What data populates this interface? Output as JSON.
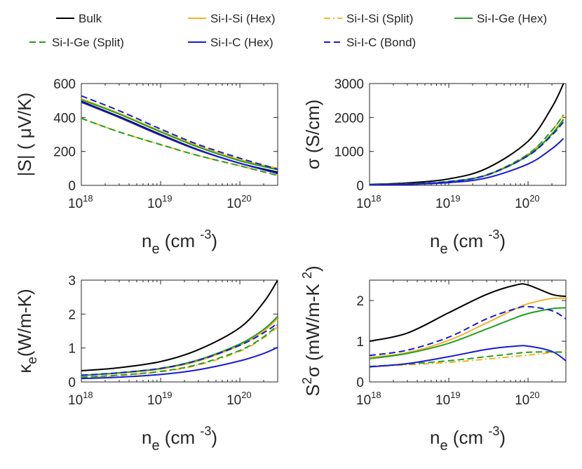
{
  "legend": {
    "entries": [
      {
        "name": "Bulk",
        "color": "#000000",
        "dash": "solid"
      },
      {
        "name": "Si-I-Si (Hex)",
        "color": "#F5B325",
        "dash": "solid"
      },
      {
        "name": "Si-I-Si (Split)",
        "color": "#F5B325",
        "dash": "dashdot"
      },
      {
        "name": "Si-I-Ge (Hex)",
        "color": "#22A022",
        "dash": "solid"
      },
      {
        "name": "Si-I-Ge (Split)",
        "color": "#22A022",
        "dash": "dashed"
      },
      {
        "name": "Si-I-C (Hex)",
        "color": "#1A1AD6",
        "dash": "solid"
      },
      {
        "name": "Si-I-C (Bond)",
        "color": "#1A1AD6",
        "dash": "dashed"
      }
    ]
  },
  "chart_data": [
    {
      "type": "line",
      "id": "seebeck",
      "xscale": "log",
      "xlim": [
        1e+18,
        3e+20
      ],
      "ylim": [
        0,
        600
      ],
      "xticks": [
        {
          "base": "10",
          "exp": "18",
          "value": 1e+18
        },
        {
          "base": "10",
          "exp": "19",
          "value": 1e+19
        },
        {
          "base": "10",
          "exp": "20",
          "value": 1e+20
        }
      ],
      "yticks": [
        {
          "label": "0",
          "value": 0
        },
        {
          "label": "200",
          "value": 200
        },
        {
          "label": "400",
          "value": 400
        },
        {
          "label": "600",
          "value": 600
        }
      ],
      "xlabel": {
        "base": "n",
        "sub": "e",
        "unit": " (cm ",
        "sup": "-3",
        "close": ")"
      },
      "ylabel": "|S| ( μV/K)",
      "x": [
        1e+18,
        3e+18,
        1e+19,
        3e+19,
        1e+20,
        3e+20
      ],
      "series": [
        {
          "name": "Bulk",
          "values": [
            495,
            405,
            300,
            210,
            130,
            78
          ]
        },
        {
          "name": "Si-I-Si (Hex)",
          "values": [
            510,
            425,
            320,
            232,
            152,
            100
          ]
        },
        {
          "name": "Si-I-Si (Split)",
          "values": [
            395,
            315,
            240,
            175,
            115,
            60
          ]
        },
        {
          "name": "Si-I-Ge (Hex)",
          "values": [
            505,
            420,
            315,
            225,
            145,
            92
          ]
        },
        {
          "name": "Si-I-Ge (Split)",
          "values": [
            395,
            315,
            240,
            175,
            115,
            58
          ]
        },
        {
          "name": "Si-I-C (Hex)",
          "values": [
            490,
            400,
            295,
            207,
            130,
            70
          ]
        },
        {
          "name": "Si-I-C (Bond)",
          "values": [
            527,
            440,
            332,
            240,
            160,
            95
          ]
        }
      ]
    },
    {
      "type": "line",
      "id": "conductivity",
      "xscale": "log",
      "xlim": [
        1e+18,
        3e+20
      ],
      "ylim": [
        0,
        3000
      ],
      "xticks": [
        {
          "base": "10",
          "exp": "18",
          "value": 1e+18
        },
        {
          "base": "10",
          "exp": "19",
          "value": 1e+19
        },
        {
          "base": "10",
          "exp": "20",
          "value": 1e+20
        }
      ],
      "yticks": [
        {
          "label": "0",
          "value": 0
        },
        {
          "label": "1000",
          "value": 1000
        },
        {
          "label": "2000",
          "value": 2000
        },
        {
          "label": "3000",
          "value": 3000
        }
      ],
      "xlabel": {
        "base": "n",
        "sub": "e",
        "unit": " (cm ",
        "sup": "-3",
        "close": ")"
      },
      "ylabel": "σ (S/cm)",
      "x": [
        1e+18,
        3e+18,
        1e+19,
        3e+19,
        1e+20,
        2e+20,
        2.8e+20
      ],
      "series": [
        {
          "name": "Bulk",
          "values": [
            25,
            70,
            190,
            500,
            1300,
            2300,
            3000
          ]
        },
        {
          "name": "Si-I-Si (Hex)",
          "values": [
            15,
            40,
            110,
            300,
            880,
            1500,
            1920
          ]
        },
        {
          "name": "Si-I-Si (Split)",
          "values": [
            15,
            40,
            110,
            310,
            920,
            1620,
            2060
          ]
        },
        {
          "name": "Si-I-Ge (Hex)",
          "values": [
            15,
            40,
            110,
            300,
            880,
            1520,
            1950
          ]
        },
        {
          "name": "Si-I-Ge (Split)",
          "values": [
            15,
            40,
            115,
            310,
            920,
            1620,
            2080
          ]
        },
        {
          "name": "Si-I-C (Hex)",
          "values": [
            12,
            30,
            80,
            220,
            630,
            1080,
            1380
          ]
        },
        {
          "name": "Si-I-C (Bond)",
          "values": [
            15,
            40,
            110,
            300,
            870,
            1480,
            1870
          ]
        }
      ]
    },
    {
      "type": "line",
      "id": "kappa",
      "xscale": "log",
      "xlim": [
        1e+18,
        3e+20
      ],
      "ylim": [
        0,
        3
      ],
      "xticks": [
        {
          "base": "10",
          "exp": "18",
          "value": 1e+18
        },
        {
          "base": "10",
          "exp": "19",
          "value": 1e+19
        },
        {
          "base": "10",
          "exp": "20",
          "value": 1e+20
        }
      ],
      "yticks": [
        {
          "label": "0",
          "value": 0
        },
        {
          "label": "1",
          "value": 1
        },
        {
          "label": "2",
          "value": 2
        },
        {
          "label": "3",
          "value": 3
        }
      ],
      "xlabel": {
        "base": "n",
        "sub": "e",
        "unit": " (cm ",
        "sup": "-3",
        "close": ")"
      },
      "ylabel": {
        "base": "κ",
        "sub": "e",
        "unit": "(W/m-K)"
      },
      "x": [
        1e+18,
        3e+18,
        1e+19,
        3e+19,
        1e+20,
        2e+20,
        3e+20
      ],
      "series": [
        {
          "name": "Bulk",
          "values": [
            0.33,
            0.42,
            0.6,
            0.95,
            1.6,
            2.35,
            3.0
          ]
        },
        {
          "name": "Si-I-Si (Hex)",
          "values": [
            0.19,
            0.26,
            0.38,
            0.62,
            1.08,
            1.5,
            1.88
          ]
        },
        {
          "name": "Si-I-Si (Split)",
          "values": [
            0.13,
            0.19,
            0.3,
            0.5,
            0.9,
            1.3,
            1.62
          ]
        },
        {
          "name": "Si-I-Ge (Hex)",
          "values": [
            0.19,
            0.27,
            0.4,
            0.65,
            1.12,
            1.55,
            1.93
          ]
        },
        {
          "name": "Si-I-Ge (Split)",
          "values": [
            0.14,
            0.2,
            0.31,
            0.52,
            0.93,
            1.33,
            1.68
          ]
        },
        {
          "name": "Si-I-C (Hex)",
          "values": [
            0.1,
            0.14,
            0.22,
            0.36,
            0.62,
            0.84,
            1.02
          ]
        },
        {
          "name": "Si-I-C (Bond)",
          "values": [
            0.2,
            0.27,
            0.4,
            0.64,
            1.08,
            1.45,
            1.73
          ]
        }
      ]
    },
    {
      "type": "line",
      "id": "power-factor",
      "xscale": "log",
      "xlim": [
        1e+18,
        3e+20
      ],
      "ylim": [
        0,
        2.5
      ],
      "xticks": [
        {
          "base": "10",
          "exp": "18",
          "value": 1e+18
        },
        {
          "base": "10",
          "exp": "19",
          "value": 1e+19
        },
        {
          "base": "10",
          "exp": "20",
          "value": 1e+20
        }
      ],
      "yticks": [
        {
          "label": "0",
          "value": 0
        },
        {
          "label": "1",
          "value": 1
        },
        {
          "label": "2",
          "value": 2
        }
      ],
      "xlabel": {
        "base": "n",
        "sub": "e",
        "unit": " (cm ",
        "sup": "-3",
        "close": ")"
      },
      "ylabel": {
        "base": "S",
        "sup": "2",
        "sym": "σ",
        "unit": " (mW/m-K ",
        "sup2": "2",
        "close": ")"
      },
      "x": [
        1e+18,
        3e+18,
        1e+19,
        3e+19,
        7e+19,
        1e+20,
        2e+20,
        3e+20
      ],
      "series": [
        {
          "name": "Bulk",
          "values": [
            1.0,
            1.2,
            1.7,
            2.15,
            2.38,
            2.38,
            2.15,
            2.1
          ]
        },
        {
          "name": "Si-I-Si (Hex)",
          "values": [
            0.6,
            0.72,
            1.02,
            1.45,
            1.8,
            1.92,
            2.05,
            2.05
          ]
        },
        {
          "name": "Si-I-Si (Split)",
          "values": [
            0.38,
            0.42,
            0.48,
            0.56,
            0.63,
            0.66,
            0.72,
            0.75
          ]
        },
        {
          "name": "Si-I-Ge (Hex)",
          "values": [
            0.57,
            0.7,
            0.95,
            1.3,
            1.58,
            1.68,
            1.8,
            1.82
          ]
        },
        {
          "name": "Si-I-Ge (Split)",
          "values": [
            0.38,
            0.44,
            0.52,
            0.62,
            0.7,
            0.73,
            0.74,
            0.72
          ]
        },
        {
          "name": "Si-I-C (Hex)",
          "values": [
            0.37,
            0.45,
            0.62,
            0.8,
            0.88,
            0.88,
            0.75,
            0.52
          ]
        },
        {
          "name": "Si-I-C (Bond)",
          "values": [
            0.65,
            0.78,
            1.1,
            1.55,
            1.8,
            1.85,
            1.75,
            1.55
          ]
        }
      ]
    }
  ]
}
